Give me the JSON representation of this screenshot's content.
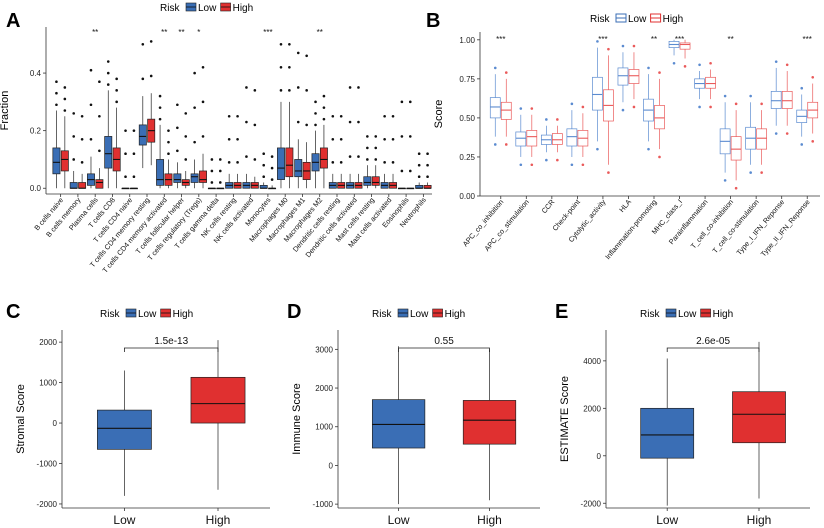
{
  "colors": {
    "low": "#3a6eb5",
    "high": "#e03030",
    "low_light": "#5b8bd0",
    "high_light": "#ea5a5a",
    "axis": "#333333"
  },
  "chart_data": [
    {
      "panel": "A",
      "type": "box",
      "ylabel": "Fraction",
      "ylim": [
        -0.02,
        0.56
      ],
      "yticks": [
        "0.0",
        "0.2",
        "0.4"
      ],
      "yticks_values": [
        0,
        0.2,
        0.4
      ],
      "legend": {
        "title": "Risk",
        "items": [
          "Low",
          "High"
        ]
      },
      "categories": [
        "B cells naive",
        "B cells memory",
        "Plasma cells",
        "T cells CD8",
        "T cells CD4 naive",
        "T cells CD4 memory resting",
        "T cells CD4 memory activated",
        "T cells follicular helper",
        "T cells regulatory (Tregs)",
        "T cells gamma delta",
        "NK cells resting",
        "NK cells activated",
        "Monocytes",
        "Macrophages M0",
        "Macrophages M1",
        "Macrophages M2",
        "Dendritic cells resting",
        "Dendritic cells activated",
        "Mast cells resting",
        "Mast cells activated",
        "Eosinophils",
        "Neutrophils"
      ],
      "significance": [
        "",
        "",
        "**",
        "",
        "",
        "",
        "**",
        "**",
        "*",
        "",
        "",
        "",
        "***",
        "",
        "",
        "**",
        "",
        "",
        "",
        "",
        "",
        ""
      ],
      "series": [
        {
          "name": "Low",
          "boxes": [
            [
              0.0,
              0.05,
              0.09,
              0.14,
              0.27
            ],
            [
              0.0,
              0.0,
              0.0,
              0.02,
              0.06
            ],
            [
              0.0,
              0.01,
              0.03,
              0.05,
              0.11
            ],
            [
              0.0,
              0.07,
              0.12,
              0.18,
              0.34
            ],
            [
              0.0,
              0.0,
              0.0,
              0.0,
              0.0
            ],
            [
              0.07,
              0.15,
              0.18,
              0.22,
              0.32
            ],
            [
              0.0,
              0.01,
              0.03,
              0.1,
              0.22
            ],
            [
              0.0,
              0.02,
              0.03,
              0.05,
              0.09
            ],
            [
              0.0,
              0.02,
              0.04,
              0.05,
              0.1
            ],
            [
              0.0,
              0.0,
              0.0,
              0.0,
              0.0
            ],
            [
              0.0,
              0.0,
              0.01,
              0.02,
              0.05
            ],
            [
              0.0,
              0.0,
              0.01,
              0.02,
              0.05
            ],
            [
              0.0,
              0.0,
              0.0,
              0.01,
              0.02
            ],
            [
              0.0,
              0.03,
              0.07,
              0.14,
              0.3
            ],
            [
              0.0,
              0.04,
              0.06,
              0.1,
              0.17
            ],
            [
              0.0,
              0.06,
              0.09,
              0.12,
              0.2
            ],
            [
              0.0,
              0.0,
              0.01,
              0.02,
              0.05
            ],
            [
              0.0,
              0.0,
              0.01,
              0.02,
              0.05
            ],
            [
              0.0,
              0.01,
              0.02,
              0.04,
              0.08
            ],
            [
              0.0,
              0.0,
              0.01,
              0.02,
              0.05
            ],
            [
              0.0,
              0.0,
              0.0,
              0.0,
              0.0
            ],
            [
              0.0,
              0.0,
              0.0,
              0.01,
              0.02
            ]
          ]
        },
        {
          "name": "High",
          "boxes": [
            [
              0.0,
              0.06,
              0.1,
              0.13,
              0.25
            ],
            [
              0.0,
              0.0,
              0.0,
              0.02,
              0.05
            ],
            [
              0.0,
              0.0,
              0.02,
              0.03,
              0.07
            ],
            [
              0.0,
              0.06,
              0.1,
              0.14,
              0.28
            ],
            [
              0.0,
              0.0,
              0.0,
              0.0,
              0.0
            ],
            [
              0.08,
              0.16,
              0.2,
              0.24,
              0.33
            ],
            [
              0.0,
              0.01,
              0.03,
              0.05,
              0.1
            ],
            [
              0.0,
              0.01,
              0.02,
              0.03,
              0.06
            ],
            [
              0.0,
              0.02,
              0.03,
              0.06,
              0.12
            ],
            [
              0.0,
              0.0,
              0.0,
              0.0,
              0.0
            ],
            [
              0.0,
              0.0,
              0.01,
              0.02,
              0.05
            ],
            [
              0.0,
              0.0,
              0.01,
              0.02,
              0.04
            ],
            [
              0.0,
              0.0,
              0.0,
              0.0,
              0.01
            ],
            [
              0.0,
              0.04,
              0.08,
              0.14,
              0.3
            ],
            [
              0.0,
              0.03,
              0.06,
              0.09,
              0.16
            ],
            [
              0.0,
              0.07,
              0.1,
              0.14,
              0.22
            ],
            [
              0.0,
              0.0,
              0.01,
              0.02,
              0.05
            ],
            [
              0.0,
              0.0,
              0.01,
              0.02,
              0.05
            ],
            [
              0.0,
              0.01,
              0.02,
              0.04,
              0.08
            ],
            [
              0.0,
              0.0,
              0.01,
              0.02,
              0.05
            ],
            [
              0.0,
              0.0,
              0.0,
              0.0,
              0.0
            ],
            [
              0.0,
              0.0,
              0.0,
              0.01,
              0.02
            ]
          ]
        }
      ]
    },
    {
      "panel": "B",
      "type": "box",
      "ylabel": "Score",
      "ylim": [
        0.0,
        1.05
      ],
      "yticks": [
        "0.00",
        "0.25",
        "0.50",
        "0.75",
        "1.00"
      ],
      "yticks_values": [
        0,
        0.25,
        0.5,
        0.75,
        1.0
      ],
      "legend": {
        "title": "Risk",
        "items": [
          "Low",
          "High"
        ]
      },
      "categories": [
        "APC_co_inhibition",
        "APC_co_stimulation",
        "CCR",
        "Check-point",
        "Cytolytic_activity",
        "HLA",
        "Inflammation-promoting",
        "MHC_class_I",
        "Parainflammation",
        "T_cell_co-inhibition",
        "T_cell_co-stimulation",
        "Type_I_IFN_Reponse",
        "Type_II_IFN_Reponse"
      ],
      "significance": [
        "***",
        "",
        "",
        "",
        "***",
        "",
        "**",
        "***",
        "",
        "**",
        "",
        "",
        "***"
      ],
      "series": [
        {
          "name": "Low",
          "boxes": [
            [
              0.38,
              0.5,
              0.57,
              0.63,
              0.78
            ],
            [
              0.25,
              0.32,
              0.37,
              0.41,
              0.52
            ],
            [
              0.28,
              0.33,
              0.36,
              0.39,
              0.45
            ],
            [
              0.25,
              0.32,
              0.38,
              0.43,
              0.55
            ],
            [
              0.35,
              0.55,
              0.65,
              0.76,
              0.95
            ],
            [
              0.6,
              0.71,
              0.77,
              0.82,
              0.92
            ],
            [
              0.35,
              0.48,
              0.55,
              0.62,
              0.78
            ],
            [
              0.9,
              0.95,
              0.97,
              0.99,
              1.0
            ],
            [
              0.62,
              0.69,
              0.72,
              0.75,
              0.8
            ],
            [
              0.15,
              0.27,
              0.35,
              0.43,
              0.6
            ],
            [
              0.2,
              0.3,
              0.37,
              0.44,
              0.6
            ],
            [
              0.45,
              0.56,
              0.61,
              0.67,
              0.82
            ],
            [
              0.38,
              0.47,
              0.51,
              0.55,
              0.65
            ]
          ]
        },
        {
          "name": "High",
          "boxes": [
            [
              0.38,
              0.49,
              0.55,
              0.6,
              0.75
            ],
            [
              0.25,
              0.32,
              0.38,
              0.42,
              0.52
            ],
            [
              0.28,
              0.33,
              0.36,
              0.4,
              0.45
            ],
            [
              0.25,
              0.32,
              0.37,
              0.42,
              0.53
            ],
            [
              0.2,
              0.48,
              0.58,
              0.68,
              0.9
            ],
            [
              0.62,
              0.72,
              0.77,
              0.81,
              0.92
            ],
            [
              0.3,
              0.43,
              0.5,
              0.58,
              0.75
            ],
            [
              0.88,
              0.94,
              0.97,
              0.98,
              1.0
            ],
            [
              0.62,
              0.69,
              0.72,
              0.76,
              0.81
            ],
            [
              0.1,
              0.23,
              0.3,
              0.38,
              0.55
            ],
            [
              0.2,
              0.3,
              0.37,
              0.43,
              0.55
            ],
            [
              0.45,
              0.56,
              0.61,
              0.67,
              0.8
            ],
            [
              0.4,
              0.5,
              0.55,
              0.6,
              0.72
            ]
          ]
        }
      ]
    },
    {
      "panel": "C",
      "type": "box",
      "ylabel": "Stromal Score",
      "ylim": [
        -2100,
        2300
      ],
      "yticks": [
        "-2000",
        "-1000",
        "0",
        "1000",
        "2000"
      ],
      "yticks_values": [
        -2000,
        -1000,
        0,
        1000,
        2000
      ],
      "legend": {
        "title": "Risk",
        "items": [
          "Low",
          "High"
        ]
      },
      "categories": [
        "Low",
        "High"
      ],
      "pvalue": "1.5e-13",
      "boxes": [
        [
          -1800,
          -650,
          -130,
          320,
          1300
        ],
        [
          -1650,
          0,
          480,
          1130,
          2050
        ]
      ]
    },
    {
      "panel": "D",
      "type": "box",
      "ylabel": "Immune Score",
      "ylim": [
        -1100,
        3500
      ],
      "yticks": [
        "-1000",
        "0",
        "1000",
        "2000",
        "3000"
      ],
      "yticks_values": [
        -1000,
        0,
        1000,
        2000,
        3000
      ],
      "legend": {
        "title": "Risk",
        "items": [
          "Low",
          "High"
        ]
      },
      "categories": [
        "Low",
        "High"
      ],
      "pvalue": "0.55",
      "boxes": [
        [
          -1000,
          450,
          1060,
          1700,
          3080
        ],
        [
          -900,
          550,
          1170,
          1680,
          3000
        ]
      ]
    },
    {
      "panel": "E",
      "type": "box",
      "ylabel": "ESTIMATE Score",
      "ylim": [
        -2200,
        5300
      ],
      "yticks": [
        "-2000",
        "0",
        "2000",
        "4000"
      ],
      "yticks_values": [
        -2000,
        0,
        2000,
        4000
      ],
      "legend": {
        "title": "Risk",
        "items": [
          "Low",
          "High"
        ]
      },
      "categories": [
        "Low",
        "High"
      ],
      "pvalue": "2.6e-05",
      "boxes": [
        [
          -2100,
          -100,
          880,
          2000,
          4100
        ],
        [
          -1800,
          550,
          1750,
          2700,
          4800
        ]
      ]
    }
  ]
}
